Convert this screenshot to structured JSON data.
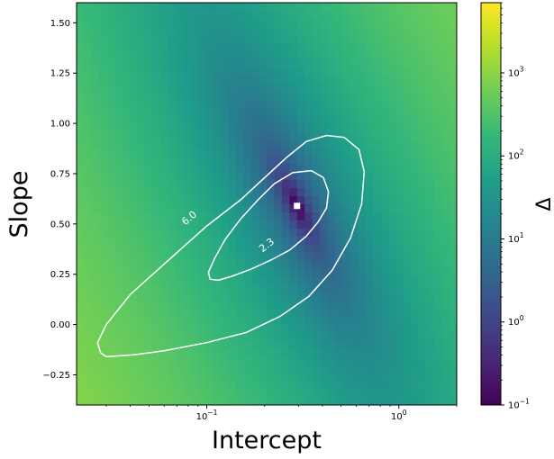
{
  "chart_data": {
    "type": "heatmap",
    "xlabel": "Intercept",
    "ylabel": "Slope",
    "x_scale": "log",
    "xlim": [
      0.021,
      2.0
    ],
    "ylim": [
      -0.4,
      1.6
    ],
    "x_ticks": [
      {
        "value": 0.1,
        "base": "10",
        "exp": "−1"
      },
      {
        "value": 1.0,
        "base": "10",
        "exp": "0"
      }
    ],
    "y_ticks": [
      {
        "value": -0.25,
        "label": "−0.25"
      },
      {
        "value": 0.0,
        "label": "0.00"
      },
      {
        "value": 0.25,
        "label": "0.25"
      },
      {
        "value": 0.5,
        "label": "0.50"
      },
      {
        "value": 0.75,
        "label": "0.75"
      },
      {
        "value": 1.0,
        "label": "1.00"
      },
      {
        "value": 1.25,
        "label": "1.25"
      },
      {
        "value": 1.5,
        "label": "1.50"
      }
    ],
    "grid": false,
    "colormap": "viridis",
    "colorbar": {
      "label": "Δ",
      "scale": "log",
      "range": [
        0.1,
        7000
      ],
      "ticks": [
        {
          "value": 0.1,
          "base": "10",
          "exp": "−1"
        },
        {
          "value": 1,
          "base": "10",
          "exp": "0"
        },
        {
          "value": 10,
          "base": "10",
          "exp": "1"
        },
        {
          "value": 100,
          "base": "10",
          "exp": "2"
        },
        {
          "value": 1000,
          "base": "10",
          "exp": "3"
        }
      ]
    },
    "best_fit": {
      "intercept": 0.295,
      "slope": 0.59
    },
    "contours": [
      {
        "level": 2.3,
        "label": "2.3",
        "points": [
          [
            0.104,
            0.225
          ],
          [
            0.115,
            0.22
          ],
          [
            0.135,
            0.24
          ],
          [
            0.17,
            0.275
          ],
          [
            0.215,
            0.32
          ],
          [
            0.27,
            0.37
          ],
          [
            0.33,
            0.44
          ],
          [
            0.38,
            0.51
          ],
          [
            0.42,
            0.58
          ],
          [
            0.43,
            0.66
          ],
          [
            0.405,
            0.73
          ],
          [
            0.35,
            0.765
          ],
          [
            0.28,
            0.755
          ],
          [
            0.225,
            0.7
          ],
          [
            0.185,
            0.62
          ],
          [
            0.15,
            0.525
          ],
          [
            0.125,
            0.425
          ],
          [
            0.11,
            0.33
          ],
          [
            0.102,
            0.26
          ],
          [
            0.104,
            0.225
          ]
        ]
      },
      {
        "level": 6.0,
        "label": "6.0",
        "points": [
          [
            0.028,
            -0.14
          ],
          [
            0.03,
            -0.16
          ],
          [
            0.042,
            -0.15
          ],
          [
            0.06,
            -0.13
          ],
          [
            0.1,
            -0.09
          ],
          [
            0.16,
            -0.04
          ],
          [
            0.24,
            0.04
          ],
          [
            0.34,
            0.14
          ],
          [
            0.45,
            0.27
          ],
          [
            0.56,
            0.43
          ],
          [
            0.64,
            0.6
          ],
          [
            0.66,
            0.76
          ],
          [
            0.62,
            0.87
          ],
          [
            0.52,
            0.93
          ],
          [
            0.42,
            0.94
          ],
          [
            0.33,
            0.91
          ],
          [
            0.26,
            0.83
          ],
          [
            0.2,
            0.73
          ],
          [
            0.15,
            0.62
          ],
          [
            0.1,
            0.49
          ],
          [
            0.065,
            0.33
          ],
          [
            0.04,
            0.15
          ],
          [
            0.03,
            0.0
          ],
          [
            0.027,
            -0.09
          ],
          [
            0.028,
            -0.14
          ]
        ]
      }
    ]
  }
}
